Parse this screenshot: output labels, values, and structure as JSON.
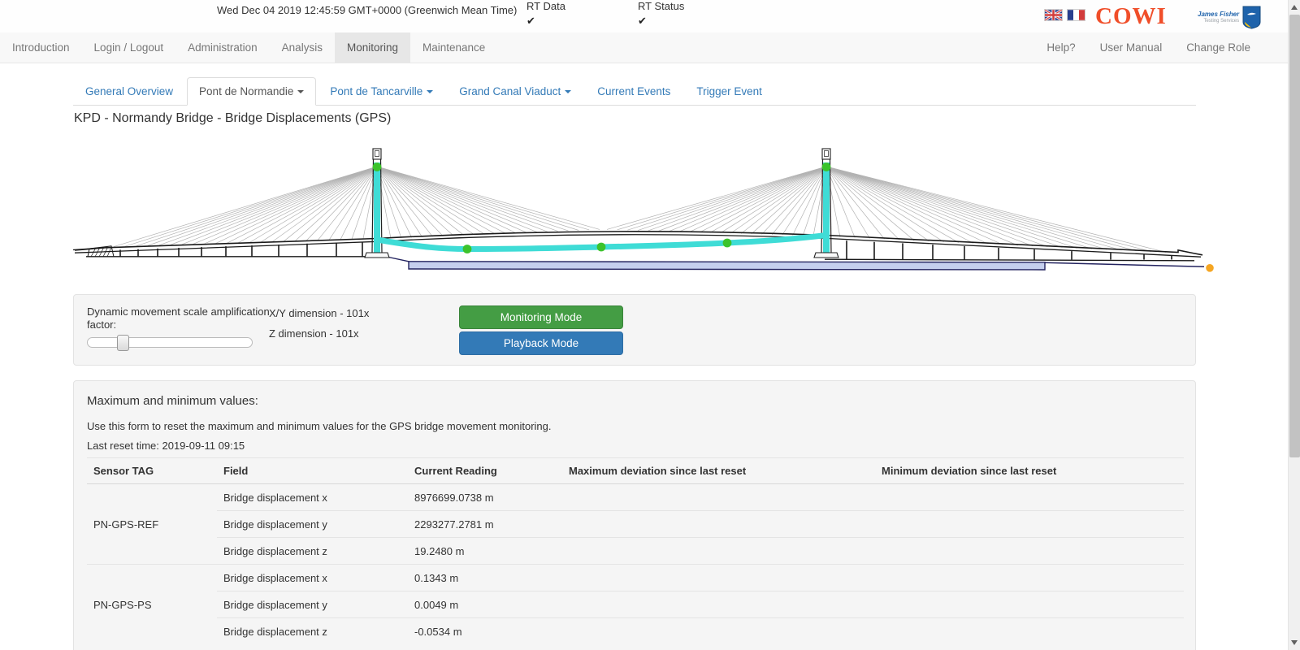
{
  "topbar": {
    "datetime": "Wed Dec 04 2019 12:45:59 GMT+0000 (Greenwich Mean Time)",
    "rt_data": {
      "label": "RT Data",
      "check": "✔"
    },
    "rt_status": {
      "label": "RT Status",
      "check": "✔"
    },
    "cowi_logo_text": "COWI",
    "jf_logo": {
      "line1": "James Fisher",
      "line2": "Testing Services"
    }
  },
  "navbar": {
    "items": [
      {
        "label": "Introduction",
        "active": false
      },
      {
        "label": "Login / Logout",
        "active": false
      },
      {
        "label": "Administration",
        "active": false
      },
      {
        "label": "Analysis",
        "active": false
      },
      {
        "label": "Monitoring",
        "active": true
      },
      {
        "label": "Maintenance",
        "active": false
      }
    ],
    "right_items": [
      {
        "label": "Help?"
      },
      {
        "label": "User Manual"
      },
      {
        "label": "Change Role"
      }
    ]
  },
  "tabs": [
    {
      "label": "General Overview",
      "active": false,
      "dropdown": false
    },
    {
      "label": "Pont de Normandie",
      "active": true,
      "dropdown": true
    },
    {
      "label": "Pont de Tancarville",
      "active": false,
      "dropdown": true
    },
    {
      "label": "Grand Canal Viaduct",
      "active": false,
      "dropdown": true
    },
    {
      "label": "Current Events",
      "active": false,
      "dropdown": false
    },
    {
      "label": "Trigger Event",
      "active": false,
      "dropdown": false
    }
  ],
  "page_title": "KPD - Normandy Bridge - Bridge Displacements (GPS)",
  "diagram": {
    "colors": {
      "displacement_line": "#3fdcd6",
      "sensor_dot": "#3cc32c",
      "reference_dot": "#f5a623",
      "deck_fill": "#c5cfee",
      "deck_outline": "#23235f",
      "cable": "#b2b2b2",
      "structure": "#1a1a1a"
    }
  },
  "controls": {
    "slider_label": "Dynamic movement scale amplification factor:",
    "slider_position_pct": 18,
    "xy_dimension": "X/Y dimension - 101x",
    "z_dimension": "Z dimension - 101x",
    "monitoring_button": "Monitoring Mode",
    "playback_button": "Playback Mode"
  },
  "maxmin": {
    "heading": "Maximum and minimum values:",
    "description": "Use this form to reset the maximum and minimum values for the GPS bridge movement monitoring.",
    "last_reset": "Last reset time: 2019-09-11 09:15",
    "table": {
      "headers": [
        "Sensor TAG",
        "Field",
        "Current Reading",
        "Maximum deviation since last reset",
        "Minimum deviation since last reset"
      ],
      "groups": [
        {
          "sensor": "PN-GPS-REF",
          "rows": [
            {
              "field": "Bridge displacement x",
              "current": "8976699.0738 m",
              "max": "",
              "min": ""
            },
            {
              "field": "Bridge displacement y",
              "current": "2293277.2781 m",
              "max": "",
              "min": ""
            },
            {
              "field": "Bridge displacement z",
              "current": "19.2480 m",
              "max": "",
              "min": ""
            }
          ]
        },
        {
          "sensor": "PN-GPS-PS",
          "rows": [
            {
              "field": "Bridge displacement x",
              "current": "0.1343 m",
              "max": "",
              "min": ""
            },
            {
              "field": "Bridge displacement y",
              "current": "0.0049 m",
              "max": "",
              "min": ""
            },
            {
              "field": "Bridge displacement z",
              "current": "-0.0534 m",
              "max": "",
              "min": ""
            }
          ]
        }
      ]
    }
  }
}
